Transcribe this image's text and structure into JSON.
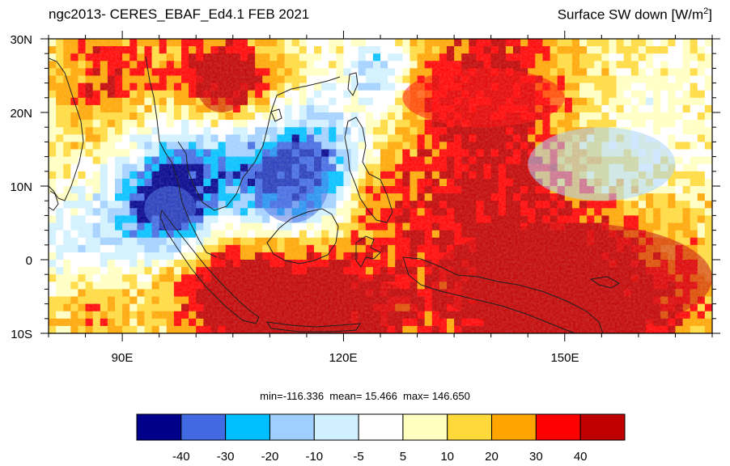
{
  "title_left": "ngc2013- CERES_EBAF_Ed4.1  FEB 2021",
  "title_right_main": "Surface SW down [W/m",
  "title_right_sup": "2",
  "title_right_end": "]",
  "lat_labels": [
    "30N",
    "20N",
    "10N",
    "0",
    "10S"
  ],
  "lon_labels": [
    "90E",
    "120E",
    "150E"
  ],
  "stats": {
    "min_label": "min=",
    "min": "-116.336",
    "mean_label": "mean=",
    "mean": "15.466",
    "max_label": "max=",
    "max": "146.650"
  },
  "legend": {
    "colors": [
      "#00008b",
      "#4169e1",
      "#00bfff",
      "#a0cfff",
      "#d0f0ff",
      "#ffffff",
      "#ffffc0",
      "#ffd93a",
      "#ffa500",
      "#ff0000",
      "#c00000"
    ],
    "labels": [
      "-40",
      "-30",
      "-20",
      "-10",
      "-5",
      "5",
      "10",
      "20",
      "30",
      "40"
    ]
  },
  "map": {
    "lon_range": [
      80,
      170
    ],
    "lat_range": [
      -10,
      30
    ],
    "regions": [
      {
        "name": "west-pacific-positive-anomaly",
        "c": 10,
        "lon": [
          132,
          170
        ],
        "lat": [
          -10,
          5
        ]
      },
      {
        "name": "indonesia-positive-anomaly",
        "c": 10,
        "lon": [
          102,
          130
        ],
        "lat": [
          -10,
          -2
        ]
      },
      {
        "name": "south-china-sea-negative-anomaly",
        "c": 1,
        "lon": [
          108,
          118
        ],
        "lat": [
          5,
          16
        ]
      },
      {
        "name": "bay-of-bengal-negative-anomaly",
        "c": 1,
        "lon": [
          93,
          100
        ],
        "lat": [
          4,
          10
        ]
      },
      {
        "name": "indochina-positive-anomaly",
        "c": 10,
        "lon": [
          100,
          107
        ],
        "lat": [
          20,
          28
        ]
      },
      {
        "name": "philippine-sea-positive-anomaly",
        "c": 9,
        "lon": [
          128,
          150
        ],
        "lat": [
          18,
          26
        ]
      },
      {
        "name": "north-pacific-negative-anomaly",
        "c": 3,
        "lon": [
          145,
          165
        ],
        "lat": [
          8,
          18
        ]
      }
    ]
  }
}
